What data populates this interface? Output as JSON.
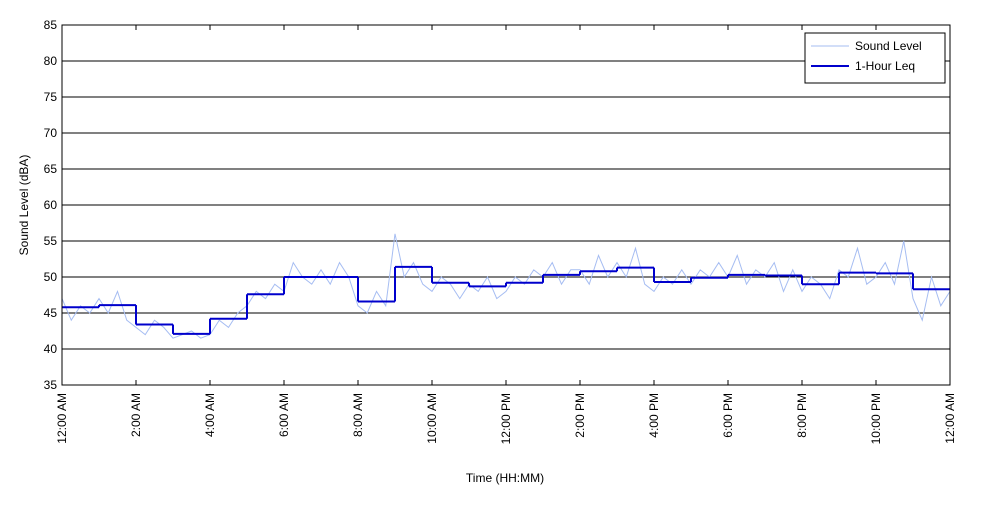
{
  "chart_data": {
    "type": "line",
    "x_label": "Time (HH:MM)",
    "y_label": "Sound Level (dBA)",
    "xlim": [
      0,
      24
    ],
    "ylim": [
      35,
      85
    ],
    "yticks": [
      35,
      40,
      45,
      50,
      55,
      60,
      65,
      70,
      75,
      80,
      85
    ],
    "xticks": [
      {
        "value": 0,
        "label": "12:00 AM"
      },
      {
        "value": 2,
        "label": "2:00 AM"
      },
      {
        "value": 4,
        "label": "4:00 AM"
      },
      {
        "value": 6,
        "label": "6:00 AM"
      },
      {
        "value": 8,
        "label": "8:00 AM"
      },
      {
        "value": 10,
        "label": "10:00 AM"
      },
      {
        "value": 12,
        "label": "12:00 PM"
      },
      {
        "value": 14,
        "label": "2:00 PM"
      },
      {
        "value": 16,
        "label": "4:00 PM"
      },
      {
        "value": 18,
        "label": "6:00 PM"
      },
      {
        "value": 20,
        "label": "8:00 PM"
      },
      {
        "value": 22,
        "label": "10:00 PM"
      },
      {
        "value": 24,
        "label": "12:00 AM"
      }
    ],
    "grid": true,
    "legend": "upper right",
    "series": [
      {
        "name": "Sound Level",
        "color": "#a6bdf2",
        "x": [
          0,
          0.25,
          0.5,
          0.75,
          1,
          1.25,
          1.5,
          1.75,
          2,
          2.25,
          2.5,
          2.75,
          3,
          3.25,
          3.5,
          3.75,
          4,
          4.25,
          4.5,
          4.75,
          5,
          5.25,
          5.5,
          5.75,
          6,
          6.25,
          6.5,
          6.75,
          7,
          7.25,
          7.5,
          7.75,
          8,
          8.25,
          8.5,
          8.75,
          9,
          9.25,
          9.5,
          9.75,
          10,
          10.25,
          10.5,
          10.75,
          11,
          11.25,
          11.5,
          11.75,
          12,
          12.25,
          12.5,
          12.75,
          13,
          13.25,
          13.5,
          13.75,
          14,
          14.25,
          14.5,
          14.75,
          15,
          15.25,
          15.5,
          15.75,
          16,
          16.25,
          16.5,
          16.75,
          17,
          17.25,
          17.5,
          17.75,
          18,
          18.25,
          18.5,
          18.75,
          19,
          19.25,
          19.5,
          19.75,
          20,
          20.25,
          20.5,
          20.75,
          21,
          21.25,
          21.5,
          21.75,
          22,
          22.25,
          22.5,
          22.75,
          23,
          23.25,
          23.5,
          23.75,
          24
        ],
        "values": [
          47,
          44,
          46,
          45,
          47,
          45,
          48,
          44,
          43,
          42,
          44,
          43,
          41.5,
          42,
          42.5,
          41.5,
          42,
          44,
          43,
          45,
          46,
          48,
          47,
          49,
          48,
          52,
          50,
          49,
          51,
          49,
          52,
          50,
          46,
          45,
          48,
          46,
          56,
          50,
          52,
          49,
          48,
          50,
          49,
          47,
          49,
          48,
          50,
          47,
          48,
          50,
          49,
          51,
          50,
          52,
          49,
          51,
          51,
          49,
          53,
          50,
          52,
          50,
          54,
          49,
          48,
          50,
          49,
          51,
          49,
          51,
          50,
          52,
          50,
          53,
          49,
          51,
          50,
          52,
          48,
          51,
          48,
          50,
          49,
          47,
          51,
          50,
          54,
          49,
          50,
          52,
          49,
          55,
          47,
          44,
          50,
          46,
          48
        ]
      },
      {
        "name": "1-Hour Leq",
        "color": "#0000cc",
        "step": "post",
        "x": [
          0,
          1,
          2,
          3,
          4,
          5,
          6,
          7,
          8,
          9,
          10,
          11,
          12,
          13,
          14,
          15,
          16,
          17,
          18,
          19,
          20,
          21,
          22,
          23
        ],
        "values": [
          45.8,
          46.1,
          43.4,
          42.1,
          44.2,
          47.6,
          50.0,
          50.0,
          46.6,
          51.4,
          49.2,
          48.7,
          49.2,
          50.3,
          50.8,
          51.3,
          49.3,
          49.9,
          50.3,
          50.2,
          49.0,
          50.6,
          50.5,
          48.3
        ]
      }
    ]
  }
}
